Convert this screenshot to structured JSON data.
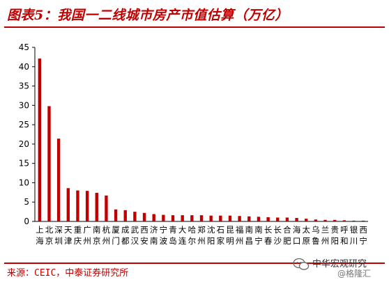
{
  "header": {
    "title": "图表5：我国一二线城市房产市值估算（万亿）"
  },
  "footer": {
    "source": "来源：CEIC，中泰证券研究所"
  },
  "watermark": {
    "name": "中华宏观研究",
    "handle": "@格隆汇"
  },
  "colors": {
    "bar": "#c00000",
    "accent": "#c00000"
  },
  "chart_data": {
    "type": "bar",
    "title": "",
    "xlabel": "",
    "ylabel": "",
    "ylim": [
      0,
      45
    ],
    "yticks": [
      0,
      5,
      10,
      15,
      20,
      25,
      30,
      35,
      40,
      45
    ],
    "grid": false,
    "legend": "none",
    "categories": [
      "上海",
      "北京",
      "深圳",
      "天津",
      "重庆",
      "广州",
      "南京",
      "杭州",
      "厦门",
      "成都",
      "武汉",
      "西安",
      "济南",
      "宁波",
      "青岛",
      "大连",
      "哈尔滨",
      "郑州",
      "沈阳",
      "石家庄",
      "昆明",
      "福州",
      "南昌",
      "南宁",
      "长春",
      "长沙",
      "合肥",
      "海口",
      "太原",
      "乌鲁木齐",
      "兰州",
      "贵阳",
      "呼和浩特",
      "银川",
      "西宁"
    ],
    "values": [
      42.1,
      29.8,
      21.4,
      8.6,
      8.0,
      7.9,
      7.4,
      6.7,
      3.1,
      2.9,
      2.5,
      2.2,
      1.9,
      1.7,
      1.6,
      1.6,
      1.6,
      1.6,
      1.5,
      1.5,
      1.5,
      1.4,
      1.3,
      1.2,
      1.1,
      1.0,
      1.0,
      0.9,
      0.7,
      0.5,
      0.4,
      0.4,
      0.3,
      0.2,
      0.2
    ]
  }
}
